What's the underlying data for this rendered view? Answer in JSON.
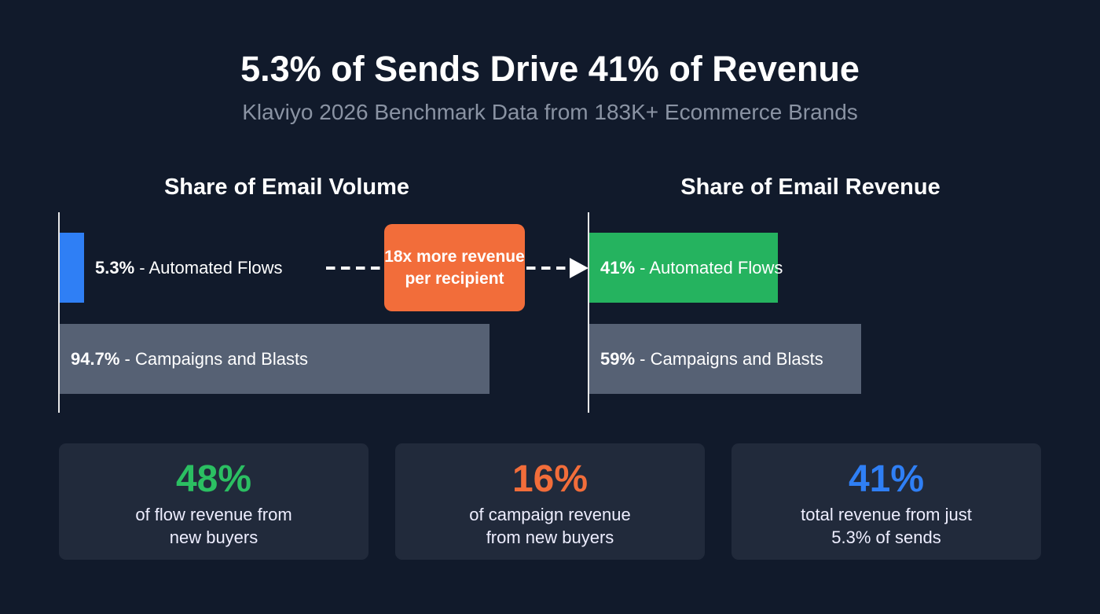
{
  "title": "5.3% of Sends Drive 41% of Revenue",
  "subtitle": "Klaviyo 2026 Benchmark Data from 183K+ Ecommerce Brands",
  "chart_data": [
    {
      "type": "bar",
      "title": "Share of Email Volume",
      "categories": [
        "Automated Flows",
        "Campaigns and Blasts"
      ],
      "values": [
        5.3,
        94.7
      ],
      "labels": [
        "5.3%",
        "94.7%"
      ],
      "colors": [
        "#2f7ff5",
        "#566174"
      ],
      "unit": "%"
    },
    {
      "type": "bar",
      "title": "Share of Email Revenue",
      "categories": [
        "Automated Flows",
        "Campaigns and Blasts"
      ],
      "values": [
        41,
        59
      ],
      "labels": [
        "41%",
        "59%"
      ],
      "colors": [
        "#25b35f",
        "#566174"
      ],
      "unit": "%"
    }
  ],
  "callout": "18x more revenue per recipient",
  "separator": " - ",
  "stats": [
    {
      "value": "48%",
      "desc": "of flow revenue from new buyers",
      "color": "#2bbf62"
    },
    {
      "value": "16%",
      "desc": "of campaign revenue from new buyers",
      "color": "#f26d3a"
    },
    {
      "value": "41%",
      "desc": "total revenue from just 5.3% of sends",
      "color": "#2f7ff5"
    }
  ]
}
